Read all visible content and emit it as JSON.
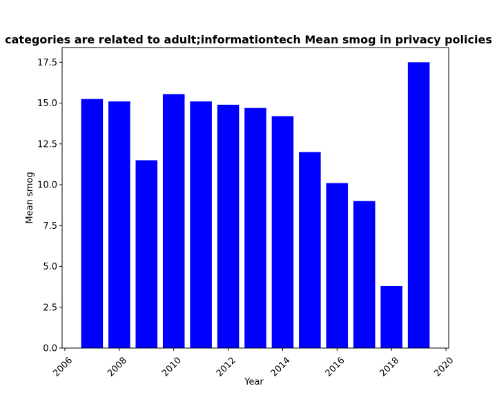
{
  "chart_data": {
    "type": "bar",
    "title": "categories are related to adult;informationtech Mean smog in privacy policies",
    "xlabel": "Year",
    "ylabel": "Mean smog",
    "x": [
      2007,
      2008,
      2009,
      2010,
      2011,
      2012,
      2013,
      2014,
      2015,
      2016,
      2017,
      2018,
      2019
    ],
    "values": [
      15.25,
      15.1,
      11.5,
      15.55,
      15.1,
      14.9,
      14.7,
      14.2,
      12.0,
      10.1,
      9.0,
      3.8,
      17.5
    ],
    "bar_color": "#0000ff",
    "xlim": [
      2005.9,
      2020.1
    ],
    "ylim": [
      0,
      18.4
    ],
    "xticks": [
      "2006",
      "2008",
      "2010",
      "2012",
      "2014",
      "2016",
      "2018",
      "2020"
    ],
    "yticks": [
      "0.0",
      "2.5",
      "5.0",
      "7.5",
      "10.0",
      "12.5",
      "15.0",
      "17.5"
    ],
    "grid": false,
    "legend": "none"
  }
}
